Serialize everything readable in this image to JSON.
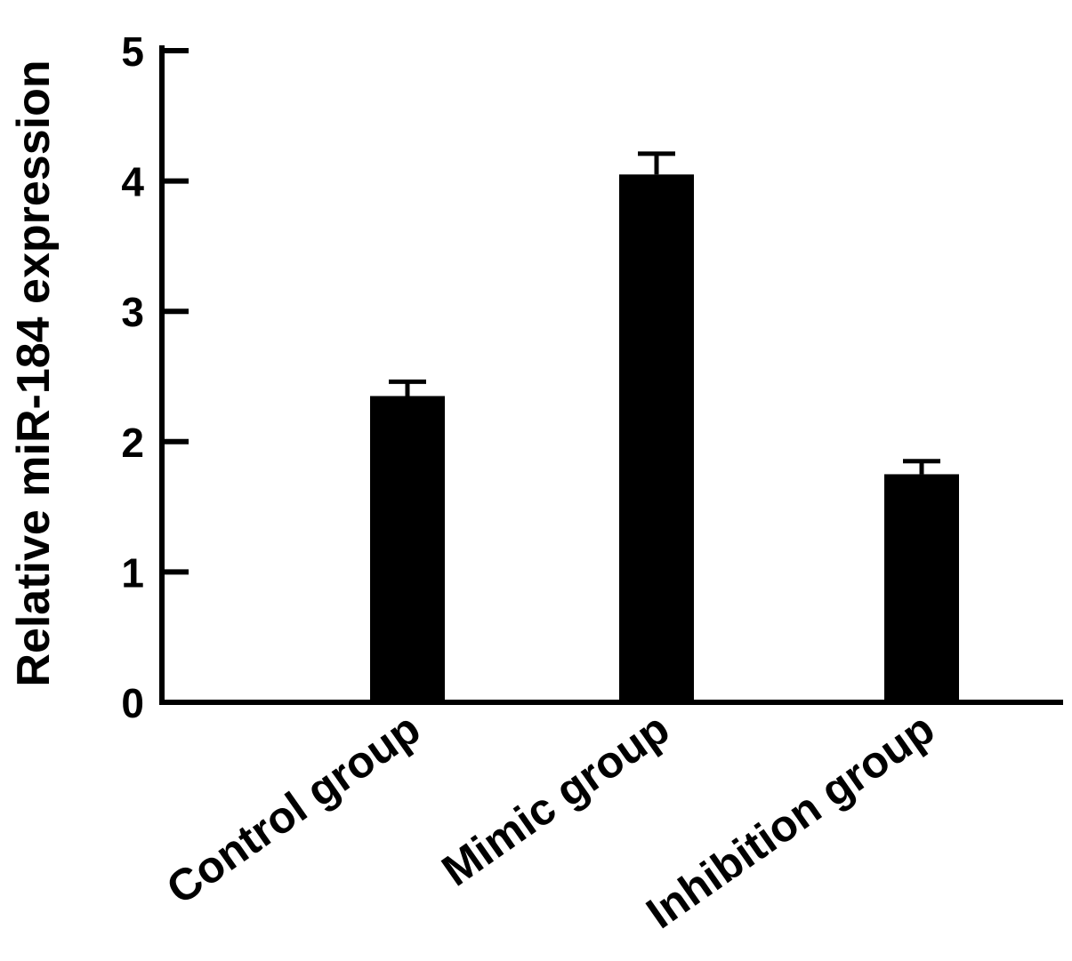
{
  "chart_data": {
    "type": "bar",
    "categories": [
      "Control group",
      "Mimic group",
      "Inhibition group"
    ],
    "values": [
      2.35,
      4.05,
      1.75
    ],
    "errors": [
      0.11,
      0.16,
      0.1
    ],
    "title": "",
    "xlabel": "",
    "ylabel": "Relative miR-184 expression",
    "ylim": [
      0,
      5
    ],
    "yticks": [
      "0",
      "1",
      "2",
      "3",
      "4",
      "5"
    ],
    "grid": false,
    "legend": "none",
    "bar_color": "#000000"
  }
}
